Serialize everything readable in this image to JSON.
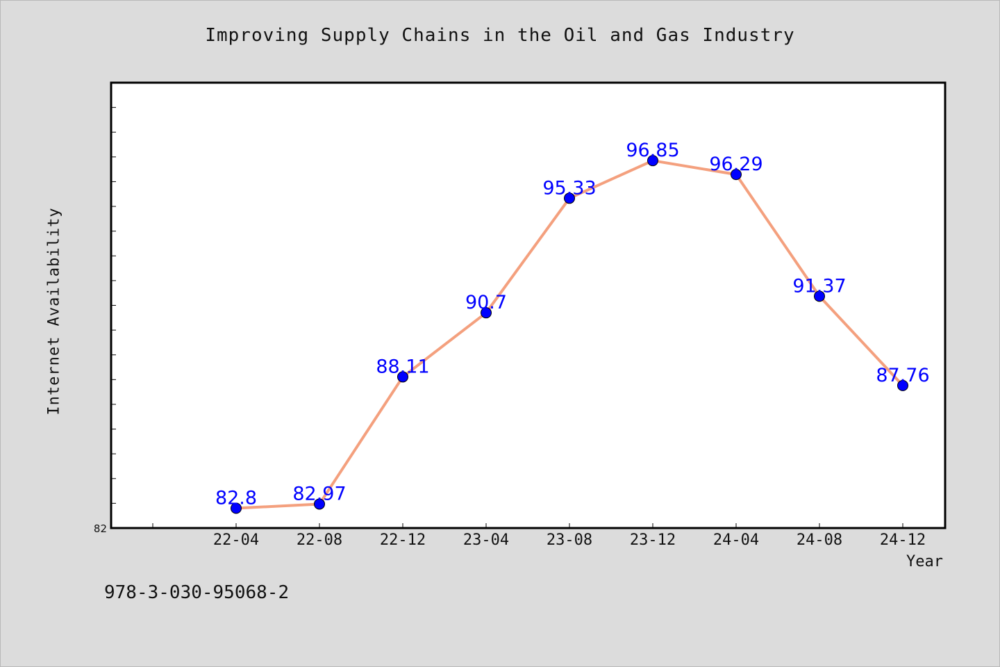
{
  "chart_data": {
    "type": "line",
    "title": "Improving Supply Chains in the Oil and Gas Industry",
    "xlabel": "Year",
    "ylabel": "Internet Availability",
    "ylim": [
      82,
      100
    ],
    "y_tick_label": "82",
    "categories": [
      "22-04",
      "22-08",
      "22-12",
      "23-04",
      "23-08",
      "23-12",
      "24-04",
      "24-08",
      "24-12"
    ],
    "series": [
      {
        "values": [
          82.8,
          82.97,
          88.11,
          90.7,
          95.33,
          96.85,
          96.29,
          91.37,
          87.76
        ],
        "line_color": "#f4a07e",
        "marker_color": "#0000ff"
      }
    ],
    "data_labels": [
      "82.8",
      "82.97",
      "88.11",
      "90.7",
      "95.33",
      "96.85",
      "96.29",
      "91.37",
      "87.76"
    ],
    "grid": false,
    "legend": "none"
  },
  "footnote": "978-3-030-95068-2"
}
